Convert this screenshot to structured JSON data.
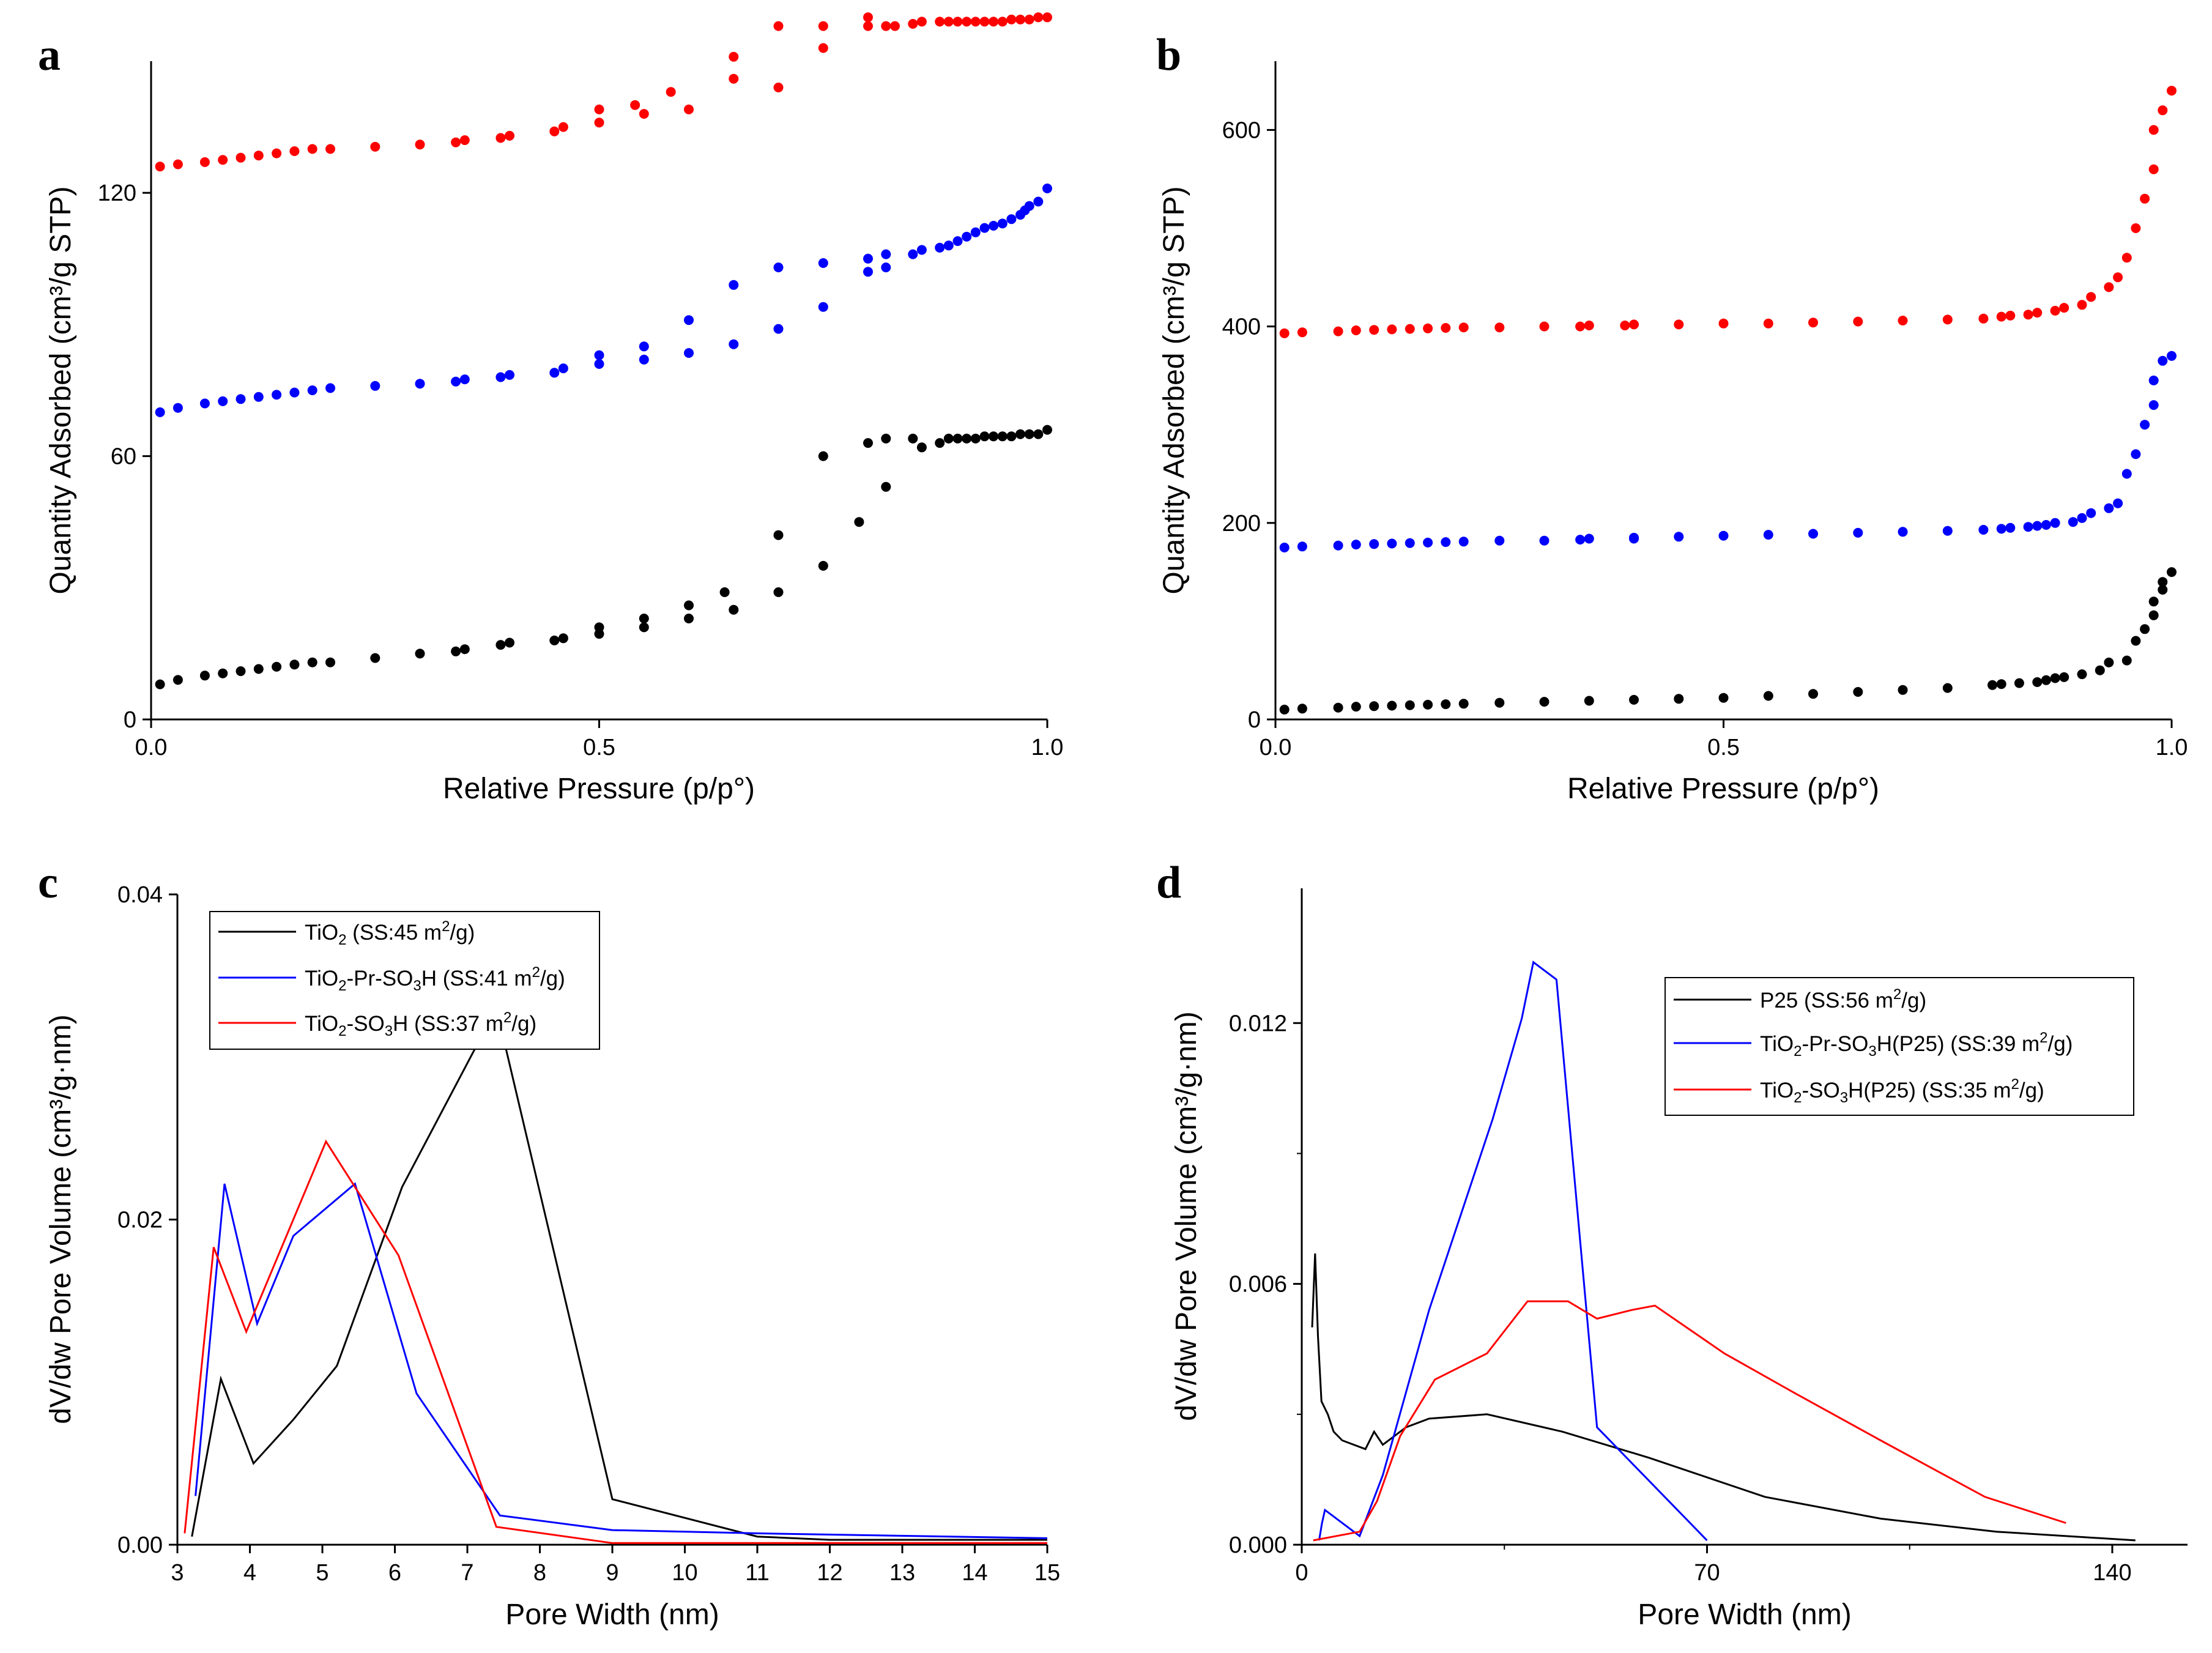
{
  "colors": {
    "black": "#000000",
    "blue": "#0000ff",
    "red": "#ff0000"
  },
  "chart_data": [
    {
      "panel": "a",
      "type": "scatter",
      "xlabel": "Relative Pressure (p/p°)",
      "ylabel": "Quantity Adsorbed (cm³/g STP)",
      "xlim": [
        0,
        1.0
      ],
      "ylim": [
        0,
        150
      ],
      "xticks": [
        0,
        0.5,
        1.0
      ],
      "xtick_labels": [
        "0.0",
        "0.5",
        "1.0"
      ],
      "yticks": [
        0,
        60,
        120
      ],
      "ytick_labels": [
        "0",
        "60",
        "120"
      ],
      "series": [
        {
          "name": "black",
          "color": "#000000",
          "x": [
            0.01,
            0.03,
            0.06,
            0.08,
            0.1,
            0.12,
            0.14,
            0.16,
            0.18,
            0.2,
            0.25,
            0.3,
            0.34,
            0.35,
            0.39,
            0.4,
            0.45,
            0.46,
            0.5,
            0.5,
            0.55,
            0.55,
            0.6,
            0.6,
            0.64,
            0.65,
            0.7,
            0.7,
            0.75,
            0.75,
            0.79,
            0.8,
            0.82,
            0.82,
            0.85,
            0.86,
            0.88,
            0.89,
            0.9,
            0.91,
            0.92,
            0.93,
            0.94,
            0.95,
            0.96,
            0.97,
            0.98,
            0.99,
            1.0
          ],
          "y": [
            8,
            9,
            10,
            10.5,
            11,
            11.5,
            12,
            12.5,
            13,
            13,
            14,
            15,
            15.5,
            16,
            17,
            17.5,
            18,
            18.5,
            19.5,
            21,
            21,
            23,
            23,
            26,
            29,
            25,
            29,
            42,
            35,
            60,
            45,
            63,
            53,
            64,
            64,
            62,
            63,
            64,
            64,
            64,
            64,
            64.5,
            64.5,
            64.5,
            64.5,
            65,
            65,
            65,
            66
          ]
        },
        {
          "name": "blue",
          "color": "#0000ff",
          "x": [
            0.01,
            0.03,
            0.06,
            0.08,
            0.1,
            0.12,
            0.14,
            0.16,
            0.18,
            0.2,
            0.25,
            0.3,
            0.34,
            0.35,
            0.39,
            0.4,
            0.45,
            0.46,
            0.5,
            0.5,
            0.55,
            0.55,
            0.6,
            0.6,
            0.65,
            0.65,
            0.7,
            0.7,
            0.75,
            0.75,
            0.8,
            0.8,
            0.82,
            0.82,
            0.85,
            0.86,
            0.88,
            0.89,
            0.9,
            0.91,
            0.92,
            0.93,
            0.94,
            0.95,
            0.96,
            0.97,
            0.975,
            0.98,
            0.99,
            1.0
          ],
          "y": [
            70,
            71,
            72,
            72.5,
            73,
            73.5,
            74,
            74.5,
            75,
            75.5,
            76,
            76.5,
            77,
            77.5,
            78,
            78.5,
            79,
            80,
            81,
            83,
            82,
            85,
            83.5,
            91,
            85.5,
            99,
            89,
            103,
            94,
            104,
            102,
            105,
            103,
            106,
            106,
            107,
            107.5,
            108,
            109,
            110,
            111,
            112,
            112.5,
            113,
            114,
            115,
            116,
            117,
            118,
            121
          ]
        },
        {
          "name": "red",
          "color": "#ff0000",
          "x": [
            0.01,
            0.03,
            0.06,
            0.08,
            0.1,
            0.12,
            0.14,
            0.16,
            0.18,
            0.2,
            0.25,
            0.3,
            0.34,
            0.35,
            0.39,
            0.4,
            0.45,
            0.46,
            0.5,
            0.5,
            0.54,
            0.55,
            0.58,
            0.6,
            0.65,
            0.65,
            0.7,
            0.7,
            0.75,
            0.75,
            0.8,
            0.8,
            0.82,
            0.83,
            0.85,
            0.86,
            0.88,
            0.89,
            0.9,
            0.91,
            0.92,
            0.93,
            0.94,
            0.95,
            0.96,
            0.97,
            0.98,
            0.99,
            1.0
          ],
          "y": [
            126,
            126.5,
            127,
            127.5,
            128,
            128.5,
            129,
            129.5,
            130,
            130,
            130.5,
            131,
            131.5,
            132,
            132.5,
            133,
            134,
            135,
            136,
            139,
            140,
            138,
            143,
            139,
            146,
            151,
            144,
            158,
            153,
            158,
            158,
            160,
            158,
            158,
            158.5,
            159,
            159,
            159,
            159,
            159,
            159,
            159,
            159,
            159,
            159.5,
            159.5,
            159.5,
            160,
            160
          ]
        }
      ]
    },
    {
      "panel": "b",
      "type": "scatter",
      "xlabel": "Relative Pressure (p/p°)",
      "ylabel": "Quantity Adsorbed (cm³/g STP)",
      "xlim": [
        0,
        1.0
      ],
      "ylim": [
        0,
        670
      ],
      "xticks": [
        0,
        0.5,
        1.0
      ],
      "xtick_labels": [
        "0.0",
        "0.5",
        "1.0"
      ],
      "yticks": [
        0,
        200,
        400,
        600
      ],
      "ytick_labels": [
        "0",
        "200",
        "400",
        "600"
      ],
      "series": [
        {
          "name": "black",
          "color": "#000000",
          "x": [
            0.01,
            0.03,
            0.07,
            0.09,
            0.11,
            0.13,
            0.15,
            0.17,
            0.19,
            0.21,
            0.25,
            0.3,
            0.35,
            0.4,
            0.45,
            0.5,
            0.55,
            0.6,
            0.65,
            0.7,
            0.75,
            0.8,
            0.81,
            0.83,
            0.85,
            0.86,
            0.87,
            0.88,
            0.9,
            0.92,
            0.93,
            0.95,
            0.96,
            0.97,
            0.98,
            0.98,
            0.99,
            0.99,
            1.0
          ],
          "y": [
            10,
            11,
            12,
            13,
            13.5,
            14,
            14.5,
            15,
            15.5,
            16,
            17,
            18,
            19,
            20,
            21,
            22,
            24,
            26,
            28,
            30,
            32,
            35,
            36,
            37,
            38,
            40,
            42,
            43,
            46,
            50,
            58,
            60,
            80,
            92,
            106,
            120,
            132,
            140,
            150
          ]
        },
        {
          "name": "blue",
          "color": "#0000ff",
          "x": [
            0.01,
            0.03,
            0.07,
            0.09,
            0.11,
            0.13,
            0.15,
            0.17,
            0.19,
            0.21,
            0.25,
            0.3,
            0.34,
            0.35,
            0.4,
            0.4,
            0.45,
            0.5,
            0.55,
            0.6,
            0.65,
            0.7,
            0.75,
            0.79,
            0.81,
            0.82,
            0.84,
            0.85,
            0.86,
            0.87,
            0.89,
            0.9,
            0.91,
            0.93,
            0.94,
            0.95,
            0.96,
            0.97,
            0.98,
            0.98,
            0.99,
            1.0
          ],
          "y": [
            175,
            176,
            177,
            178,
            178.5,
            179,
            179.5,
            180,
            180.5,
            181,
            182,
            182,
            183,
            184,
            184,
            185,
            186,
            187,
            188,
            189,
            190,
            191,
            192,
            193,
            194,
            195,
            196,
            197,
            198,
            200,
            201,
            205,
            210,
            215,
            220,
            250,
            270,
            300,
            320,
            345,
            365,
            370
          ]
        },
        {
          "name": "red",
          "color": "#ff0000",
          "x": [
            0.01,
            0.03,
            0.07,
            0.09,
            0.11,
            0.13,
            0.15,
            0.17,
            0.19,
            0.21,
            0.25,
            0.3,
            0.34,
            0.35,
            0.39,
            0.4,
            0.45,
            0.5,
            0.55,
            0.6,
            0.65,
            0.7,
            0.75,
            0.79,
            0.81,
            0.82,
            0.84,
            0.85,
            0.87,
            0.88,
            0.9,
            0.91,
            0.93,
            0.94,
            0.95,
            0.96,
            0.97,
            0.98,
            0.98,
            0.99,
            1.0
          ],
          "y": [
            393,
            394,
            395,
            396,
            396.5,
            397,
            397.5,
            398,
            398.5,
            399,
            399,
            400,
            400,
            401,
            401,
            402,
            402,
            403,
            403,
            404,
            405,
            406,
            407,
            408,
            410,
            411,
            412,
            414,
            416,
            419,
            422,
            430,
            440,
            450,
            470,
            500,
            530,
            560,
            600,
            620,
            640
          ]
        }
      ]
    },
    {
      "panel": "c",
      "type": "line",
      "xlabel": "Pore Width (nm)",
      "ylabel": "dV/dw Pore Volume (cm³/g·nm)",
      "xlim": [
        3,
        15
      ],
      "ylim": [
        0,
        0.04
      ],
      "xticks": [
        3,
        4,
        5,
        6,
        7,
        8,
        9,
        10,
        11,
        12,
        13,
        14,
        15
      ],
      "xtick_labels": [
        "3",
        "4",
        "5",
        "6",
        "7",
        "8",
        "9",
        "10",
        "11",
        "12",
        "13",
        "14",
        "15"
      ],
      "yticks": [
        0,
        0.02,
        0.04
      ],
      "ytick_labels": [
        "0.00",
        "0.02",
        "0.04"
      ],
      "legend": [
        {
          "base": "TiO",
          "sub1": "2",
          "mid": " (SS:45 m",
          "sup": "2",
          "tail": "/g)"
        },
        {
          "base": "TiO",
          "sub1": "2",
          "mid": "-Pr-SO",
          "sub2": "3",
          "mid2": "H (SS:41 m",
          "sup": "2",
          "tail": "/g)"
        },
        {
          "base": "TiO",
          "sub1": "2",
          "mid": "-SO",
          "sub2": "3",
          "mid2": "H (SS:37 m",
          "sup": "2",
          "tail": "/g)"
        }
      ],
      "series": [
        {
          "name": "TiO2 (SS:45 m2/g)",
          "color": "#000000",
          "x": [
            3.2,
            3.6,
            4.05,
            4.6,
            5.2,
            6.1,
            7.4,
            9.0,
            11.0,
            12.0,
            15.0
          ],
          "y": [
            0.0005,
            0.0102,
            0.005,
            0.0077,
            0.011,
            0.022,
            0.033,
            0.0028,
            0.0005,
            0.0003,
            0.0003
          ]
        },
        {
          "name": "TiO2-Pr-SO3H (SS:41 m2/g)",
          "color": "#0000ff",
          "x": [
            3.25,
            3.65,
            4.1,
            4.6,
            5.45,
            6.3,
            7.45,
            9.0,
            11.0,
            15.0
          ],
          "y": [
            0.003,
            0.0222,
            0.0136,
            0.019,
            0.0222,
            0.0093,
            0.0018,
            0.0009,
            0.0007,
            0.0004
          ]
        },
        {
          "name": "TiO2-SO3H (SS:37 m2/g)",
          "color": "#ff0000",
          "x": [
            3.1,
            3.5,
            3.95,
            5.05,
            6.05,
            7.4,
            9.0,
            15.0
          ],
          "y": [
            0.0007,
            0.0183,
            0.0131,
            0.0248,
            0.0178,
            0.0011,
            0.0001,
            0.0001
          ]
        }
      ]
    },
    {
      "panel": "d",
      "type": "line",
      "xlabel": "Pore Width (nm)",
      "ylabel": "dV/dw Pore Volume (cm³/g·nm)",
      "xlim": [
        0,
        153
      ],
      "ylim": [
        0,
        0.0151
      ],
      "xticks": [
        0,
        70,
        140
      ],
      "xtick_labels": [
        "0",
        "70",
        "140"
      ],
      "yticks": [
        0,
        0.006,
        0.012
      ],
      "ytick_labels": [
        "0.000",
        "0.006",
        "0.012"
      ],
      "legend": [
        {
          "base": "P25 (SS:56 m",
          "sup": "2",
          "tail": "/g)"
        },
        {
          "base": "TiO",
          "sub1": "2",
          "mid": "-Pr-SO",
          "sub2": "3",
          "mid2": "H(P25) (SS:39 m",
          "sup": "2",
          "tail": "/g)"
        },
        {
          "base": "TiO",
          "sub1": "2",
          "mid": "-SO",
          "sub2": "3",
          "mid2": "H(P25) (SS:35 m",
          "sup": "2",
          "tail": "/g)"
        }
      ],
      "series": [
        {
          "name": "P25 (SS:56 m2/g)",
          "color": "#000000",
          "x": [
            1.8,
            2.3,
            2.8,
            3.4,
            4.5,
            5.5,
            7,
            9,
            11,
            12.5,
            14,
            16,
            18,
            22,
            32,
            45,
            60,
            80,
            100,
            120,
            144
          ],
          "y": [
            0.005,
            0.0067,
            0.0048,
            0.0033,
            0.003,
            0.0026,
            0.0024,
            0.0023,
            0.0022,
            0.0026,
            0.0023,
            0.0025,
            0.0027,
            0.0029,
            0.003,
            0.0026,
            0.002,
            0.0011,
            0.0006,
            0.0003,
            0.0001
          ]
        },
        {
          "name": "TiO2-Pr-SO3H(P25) (SS:39 m2/g)",
          "color": "#0000ff",
          "x": [
            3,
            3.5,
            4,
            10,
            14,
            22,
            33,
            38,
            40,
            44,
            51,
            70
          ],
          "y": [
            0.0001,
            0.0005,
            0.0008,
            0.0002,
            0.0016,
            0.0054,
            0.0098,
            0.0121,
            0.0134,
            0.013,
            0.0027,
            0.0001
          ]
        },
        {
          "name": "TiO2-SO3H(P25) (SS:35 m2/g)",
          "color": "#ff0000",
          "x": [
            2,
            10,
            13,
            17,
            23,
            32,
            39,
            46,
            51,
            57,
            61,
            73,
            85,
            100,
            118,
            132
          ],
          "y": [
            0.0001,
            0.0003,
            0.001,
            0.0025,
            0.0038,
            0.0044,
            0.0056,
            0.0056,
            0.0052,
            0.0054,
            0.0055,
            0.0044,
            0.0035,
            0.0024,
            0.0011,
            0.0005
          ]
        }
      ]
    }
  ]
}
